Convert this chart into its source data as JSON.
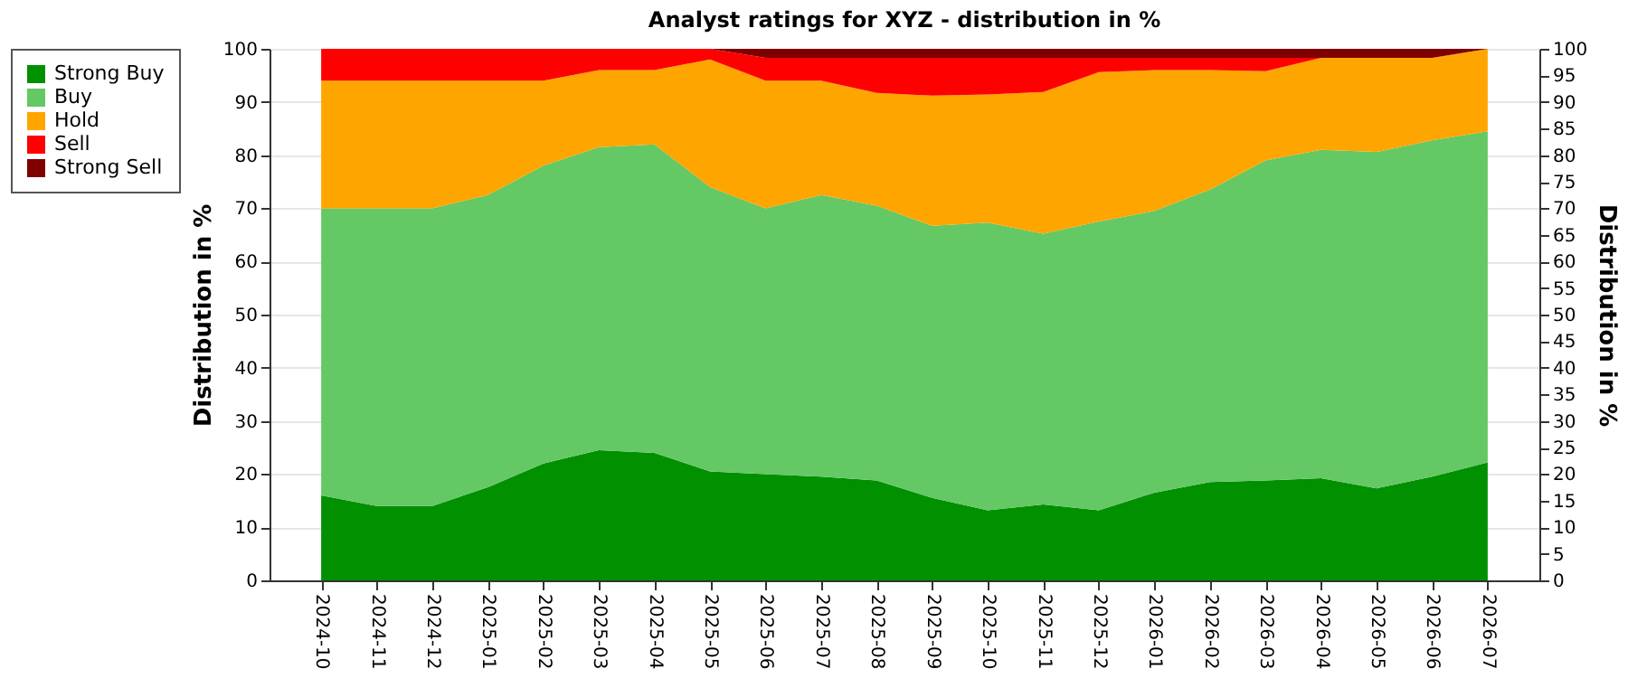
{
  "chart_data": {
    "type": "area",
    "stacked": true,
    "title": "Analyst ratings for XYZ - distribution in %",
    "ylabel": "Distribution in %",
    "y2label": "Distribution in %",
    "categories": [
      "2024-10",
      "2024-11",
      "2024-12",
      "2025-01",
      "2025-02",
      "2025-03",
      "2025-04",
      "2025-05",
      "2025-06",
      "2025-07",
      "2025-08",
      "2025-09",
      "2025-10",
      "2025-11",
      "2025-12",
      "2026-01",
      "2026-02",
      "2026-03",
      "2026-04",
      "2026-05",
      "2026-06",
      "2026-07"
    ],
    "series": [
      {
        "name": "Strong Buy",
        "color": "#009000",
        "values": [
          16,
          14,
          14,
          17.5,
          22,
          24.5,
          24,
          20.5,
          20,
          19.5,
          18.8,
          15.5,
          13.2,
          14.3,
          13.2,
          16.5,
          18.5,
          18.8,
          19.2,
          17.3,
          19.5,
          22.2
        ]
      },
      {
        "name": "Buy",
        "color": "#64c864",
        "values": [
          54,
          56,
          56,
          55,
          56,
          57,
          58,
          53.5,
          50,
          53,
          51.7,
          51.2,
          54.1,
          50.9,
          54.3,
          53,
          55,
          60.2,
          61.8,
          63.3,
          63.3,
          62.3
        ]
      },
      {
        "name": "Hold",
        "color": "#ffa500",
        "values": [
          24,
          24,
          24,
          21.5,
          16,
          14.5,
          14,
          24,
          24,
          21.5,
          21.2,
          24.5,
          24.1,
          26.7,
          28.1,
          26.5,
          22.5,
          16.8,
          17.3,
          17.7,
          15.5,
          15.5
        ]
      },
      {
        "name": "Sell",
        "color": "#ff0000",
        "values": [
          6,
          6,
          6,
          6,
          6,
          4,
          4,
          2,
          4.3,
          4.3,
          6.6,
          7.1,
          6.9,
          6.4,
          2.7,
          2.3,
          2.3,
          2.5,
          0,
          0,
          0,
          0
        ]
      },
      {
        "name": "Strong Sell",
        "color": "#800000",
        "values": [
          0,
          0,
          0,
          0,
          0,
          0,
          0,
          0,
          1.7,
          1.7,
          1.7,
          1.7,
          1.7,
          1.7,
          1.7,
          1.7,
          1.7,
          1.7,
          1.7,
          1.7,
          1.7,
          0
        ]
      }
    ],
    "ylim": [
      0,
      100
    ],
    "yticks": [
      0,
      10,
      20,
      30,
      40,
      50,
      60,
      70,
      80,
      90,
      100
    ],
    "y2lim": [
      0,
      100
    ],
    "y2ticks": [
      0,
      5,
      10,
      15,
      20,
      25,
      30,
      35,
      40,
      45,
      50,
      55,
      60,
      65,
      70,
      75,
      80,
      85,
      90,
      95,
      100
    ],
    "grid": "y",
    "legend": "left"
  }
}
